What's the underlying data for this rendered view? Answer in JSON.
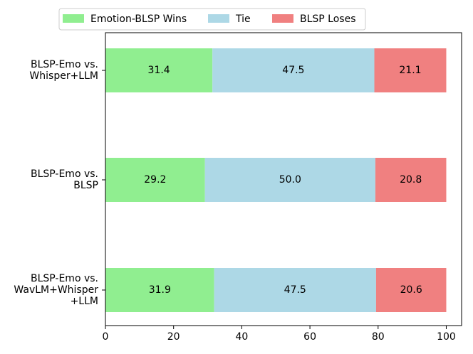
{
  "chart_data": {
    "type": "bar",
    "orientation": "horizontal",
    "stacked": true,
    "title": "",
    "xlabel": "",
    "ylabel": "",
    "xlim": [
      0,
      104.5
    ],
    "xticks": [
      0,
      20,
      40,
      60,
      80,
      100
    ],
    "grid": false,
    "legend_position": "top",
    "categories": [
      [
        "BLSP-Emo vs.",
        "Whisper+LLM"
      ],
      [
        "BLSP-Emo vs.",
        "BLSP"
      ],
      [
        "BLSP-Emo vs.",
        "WavLM+Whisper",
        "+LLM"
      ]
    ],
    "series": [
      {
        "name": "Emotion-BLSP Wins",
        "color": "#90ee90",
        "values": [
          31.4,
          29.2,
          31.9
        ],
        "labels": [
          "31.4",
          "29.2",
          "31.9"
        ]
      },
      {
        "name": "Tie",
        "color": "#add8e6",
        "values": [
          47.5,
          50.0,
          47.5
        ],
        "labels": [
          "47.5",
          "50.0",
          "47.5"
        ]
      },
      {
        "name": "BLSP Loses",
        "color": "#f08080",
        "values": [
          21.1,
          20.8,
          20.6
        ],
        "labels": [
          "21.1",
          "20.8",
          "20.6"
        ]
      }
    ]
  }
}
